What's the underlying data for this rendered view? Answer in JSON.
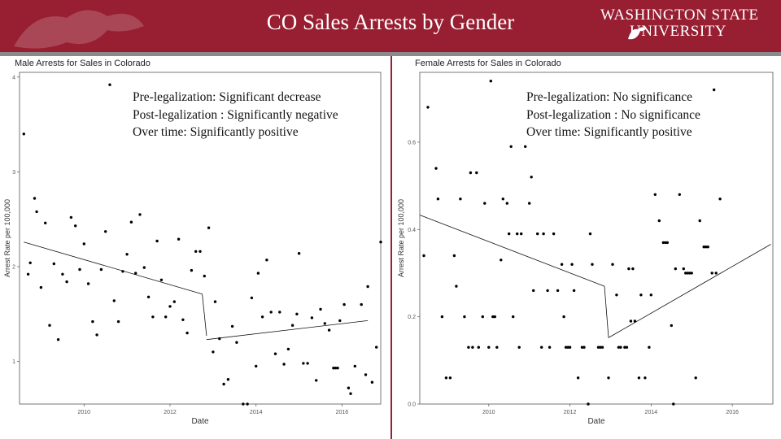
{
  "slide": {
    "title": "CO Sales Arrests by Gender",
    "university_line1": "WASHINGTON STATE",
    "university_line2": "UNIVERSITY"
  },
  "colors": {
    "banner": "#981e32",
    "points": "#000000",
    "text": "#111111"
  },
  "chart_data": [
    {
      "type": "scatter",
      "title": "Male Arrests for Sales in Colorado",
      "xlabel": "Date",
      "ylabel": "Arrest Rate per 100,000",
      "xlim": [
        2008.5,
        2016.9
      ],
      "ylim": [
        0.55,
        4.05
      ],
      "xticks": [
        2010,
        2012,
        2014,
        2016
      ],
      "yticks": [
        1,
        2,
        3,
        4
      ],
      "legalization": 2012.8,
      "fit": [
        {
          "x": [
            2008.6,
            2012.75
          ],
          "y": [
            2.26,
            1.71
          ]
        },
        {
          "x": [
            2012.75,
            2012.85
          ],
          "y": [
            1.71,
            1.27
          ]
        },
        {
          "x": [
            2012.85,
            2016.6
          ],
          "y": [
            1.23,
            1.43
          ]
        }
      ],
      "points": [
        [
          2008.6,
          3.4
        ],
        [
          2008.7,
          1.92
        ],
        [
          2008.75,
          2.04
        ],
        [
          2008.85,
          2.72
        ],
        [
          2008.9,
          2.58
        ],
        [
          2009.0,
          1.78
        ],
        [
          2009.1,
          2.46
        ],
        [
          2009.2,
          1.38
        ],
        [
          2009.3,
          2.03
        ],
        [
          2009.4,
          1.23
        ],
        [
          2009.5,
          1.92
        ],
        [
          2009.6,
          1.84
        ],
        [
          2009.7,
          2.52
        ],
        [
          2009.8,
          2.43
        ],
        [
          2009.9,
          1.97
        ],
        [
          2010.0,
          2.24
        ],
        [
          2010.1,
          1.82
        ],
        [
          2010.2,
          1.42
        ],
        [
          2010.3,
          1.28
        ],
        [
          2010.4,
          1.97
        ],
        [
          2010.5,
          2.37
        ],
        [
          2010.6,
          3.92
        ],
        [
          2010.7,
          1.64
        ],
        [
          2010.8,
          1.42
        ],
        [
          2010.9,
          1.95
        ],
        [
          2011.0,
          2.13
        ],
        [
          2011.1,
          2.47
        ],
        [
          2011.2,
          1.93
        ],
        [
          2011.3,
          2.55
        ],
        [
          2011.4,
          1.99
        ],
        [
          2011.5,
          1.68
        ],
        [
          2011.6,
          1.47
        ],
        [
          2011.7,
          2.27
        ],
        [
          2011.8,
          1.86
        ],
        [
          2011.9,
          1.47
        ],
        [
          2012.0,
          1.58
        ],
        [
          2012.1,
          1.63
        ],
        [
          2012.2,
          2.29
        ],
        [
          2012.3,
          1.44
        ],
        [
          2012.4,
          1.3
        ],
        [
          2012.5,
          1.96
        ],
        [
          2012.6,
          2.16
        ],
        [
          2012.7,
          2.16
        ],
        [
          2012.8,
          1.9
        ],
        [
          2012.9,
          2.41
        ],
        [
          2013.0,
          1.1
        ],
        [
          2013.05,
          1.63
        ],
        [
          2013.15,
          1.24
        ],
        [
          2013.25,
          0.76
        ],
        [
          2013.35,
          0.81
        ],
        [
          2013.45,
          1.37
        ],
        [
          2013.55,
          1.2
        ],
        [
          2013.7,
          0.55
        ],
        [
          2013.8,
          0.55
        ],
        [
          2013.9,
          1.67
        ],
        [
          2014.0,
          0.95
        ],
        [
          2014.05,
          1.93
        ],
        [
          2014.15,
          1.47
        ],
        [
          2014.25,
          2.07
        ],
        [
          2014.35,
          1.52
        ],
        [
          2014.45,
          1.08
        ],
        [
          2014.55,
          1.52
        ],
        [
          2014.65,
          0.97
        ],
        [
          2014.75,
          1.13
        ],
        [
          2014.85,
          1.38
        ],
        [
          2014.95,
          1.5
        ],
        [
          2015.0,
          2.14
        ],
        [
          2015.1,
          0.98
        ],
        [
          2015.2,
          0.98
        ],
        [
          2015.3,
          1.46
        ],
        [
          2015.4,
          0.8
        ],
        [
          2015.5,
          1.55
        ],
        [
          2015.6,
          1.4
        ],
        [
          2015.7,
          1.33
        ],
        [
          2015.8,
          0.93
        ],
        [
          2015.85,
          0.93
        ],
        [
          2015.9,
          0.93
        ],
        [
          2015.95,
          1.43
        ],
        [
          2016.05,
          1.6
        ],
        [
          2016.15,
          0.72
        ],
        [
          2016.2,
          0.66
        ],
        [
          2016.3,
          0.95
        ],
        [
          2016.45,
          1.6
        ],
        [
          2016.55,
          0.86
        ],
        [
          2016.6,
          1.79
        ],
        [
          2016.7,
          0.78
        ],
        [
          2016.8,
          1.15
        ],
        [
          2016.9,
          2.26
        ],
        [
          2017.0,
          1.83
        ],
        [
          2017.1,
          1.6
        ],
        [
          2017.2,
          2.01
        ]
      ]
    },
    {
      "type": "scatter",
      "title": "Female Arrests for Sales in Colorado",
      "xlabel": "Date",
      "ylabel": "Arrest Rate per 100,000",
      "xlim": [
        2008.3,
        2017.0
      ],
      "ylim": [
        0.0,
        0.76
      ],
      "xticks": [
        2010,
        2012,
        2014,
        2016
      ],
      "yticks": [
        0.0,
        0.2,
        0.4,
        0.6
      ],
      "legalization": 2012.8,
      "fit": [
        {
          "x": [
            2008.3,
            2012.85
          ],
          "y": [
            0.433,
            0.27
          ]
        },
        {
          "x": [
            2012.85,
            2012.95
          ],
          "y": [
            0.27,
            0.152
          ]
        },
        {
          "x": [
            2012.95,
            2016.95
          ],
          "y": [
            0.152,
            0.366
          ]
        }
      ],
      "points": [
        [
          2008.2,
          0.54
        ],
        [
          2008.4,
          0.34
        ],
        [
          2008.5,
          0.68
        ],
        [
          2008.7,
          0.54
        ],
        [
          2008.75,
          0.47
        ],
        [
          2008.85,
          0.2
        ],
        [
          2008.95,
          0.06
        ],
        [
          2009.05,
          0.06
        ],
        [
          2009.15,
          0.34
        ],
        [
          2009.2,
          0.27
        ],
        [
          2009.3,
          0.47
        ],
        [
          2009.4,
          0.2
        ],
        [
          2009.5,
          0.13
        ],
        [
          2009.55,
          0.53
        ],
        [
          2009.6,
          0.13
        ],
        [
          2009.7,
          0.53
        ],
        [
          2009.75,
          0.13
        ],
        [
          2009.85,
          0.2
        ],
        [
          2009.9,
          0.46
        ],
        [
          2010.0,
          0.13
        ],
        [
          2010.05,
          0.74
        ],
        [
          2010.1,
          0.2
        ],
        [
          2010.15,
          0.2
        ],
        [
          2010.2,
          0.13
        ],
        [
          2010.3,
          0.33
        ],
        [
          2010.35,
          0.47
        ],
        [
          2010.45,
          0.46
        ],
        [
          2010.5,
          0.39
        ],
        [
          2010.55,
          0.59
        ],
        [
          2010.6,
          0.2
        ],
        [
          2010.7,
          0.39
        ],
        [
          2010.75,
          0.13
        ],
        [
          2010.8,
          0.39
        ],
        [
          2010.9,
          0.59
        ],
        [
          2011.0,
          0.46
        ],
        [
          2011.05,
          0.52
        ],
        [
          2011.1,
          0.26
        ],
        [
          2011.2,
          0.39
        ],
        [
          2011.3,
          0.13
        ],
        [
          2011.35,
          0.39
        ],
        [
          2011.45,
          0.26
        ],
        [
          2011.5,
          0.13
        ],
        [
          2011.6,
          0.39
        ],
        [
          2011.7,
          0.26
        ],
        [
          2011.8,
          0.32
        ],
        [
          2011.85,
          0.2
        ],
        [
          2011.9,
          0.13
        ],
        [
          2011.95,
          0.13
        ],
        [
          2012.0,
          0.13
        ],
        [
          2012.05,
          0.32
        ],
        [
          2012.1,
          0.26
        ],
        [
          2012.2,
          0.06
        ],
        [
          2012.3,
          0.13
        ],
        [
          2012.35,
          0.13
        ],
        [
          2012.45,
          0.0
        ],
        [
          2012.5,
          0.39
        ],
        [
          2012.55,
          0.32
        ],
        [
          2012.7,
          0.13
        ],
        [
          2012.75,
          0.13
        ],
        [
          2012.8,
          0.13
        ],
        [
          2012.95,
          0.06
        ],
        [
          2013.05,
          0.32
        ],
        [
          2013.15,
          0.25
        ],
        [
          2013.2,
          0.13
        ],
        [
          2013.25,
          0.13
        ],
        [
          2013.35,
          0.13
        ],
        [
          2013.4,
          0.13
        ],
        [
          2013.45,
          0.31
        ],
        [
          2013.5,
          0.19
        ],
        [
          2013.55,
          0.31
        ],
        [
          2013.6,
          0.19
        ],
        [
          2013.7,
          0.06
        ],
        [
          2013.75,
          0.25
        ],
        [
          2013.85,
          0.06
        ],
        [
          2013.95,
          0.13
        ],
        [
          2014.0,
          0.25
        ],
        [
          2014.1,
          0.48
        ],
        [
          2014.2,
          0.42
        ],
        [
          2014.3,
          0.37
        ],
        [
          2014.35,
          0.37
        ],
        [
          2014.4,
          0.37
        ],
        [
          2014.5,
          0.18
        ],
        [
          2014.55,
          0.0
        ],
        [
          2014.6,
          0.31
        ],
        [
          2014.7,
          0.48
        ],
        [
          2014.8,
          0.31
        ],
        [
          2014.85,
          0.3
        ],
        [
          2014.9,
          0.3
        ],
        [
          2014.95,
          0.3
        ],
        [
          2015.0,
          0.3
        ],
        [
          2015.1,
          0.06
        ],
        [
          2015.2,
          0.42
        ],
        [
          2015.3,
          0.36
        ],
        [
          2015.35,
          0.36
        ],
        [
          2015.4,
          0.36
        ],
        [
          2015.5,
          0.3
        ],
        [
          2015.55,
          0.72
        ],
        [
          2015.6,
          0.3
        ],
        [
          2015.7,
          0.47
        ]
      ]
    }
  ],
  "annotations": {
    "male": [
      "Pre-legalization: Significant decrease",
      "Post-legalization : Significantly negative",
      "Over time: Significantly positive"
    ],
    "female": [
      "Pre-legalization: No significance",
      "Post-legalization : No significance",
      "Over time: Significantly positive"
    ]
  }
}
